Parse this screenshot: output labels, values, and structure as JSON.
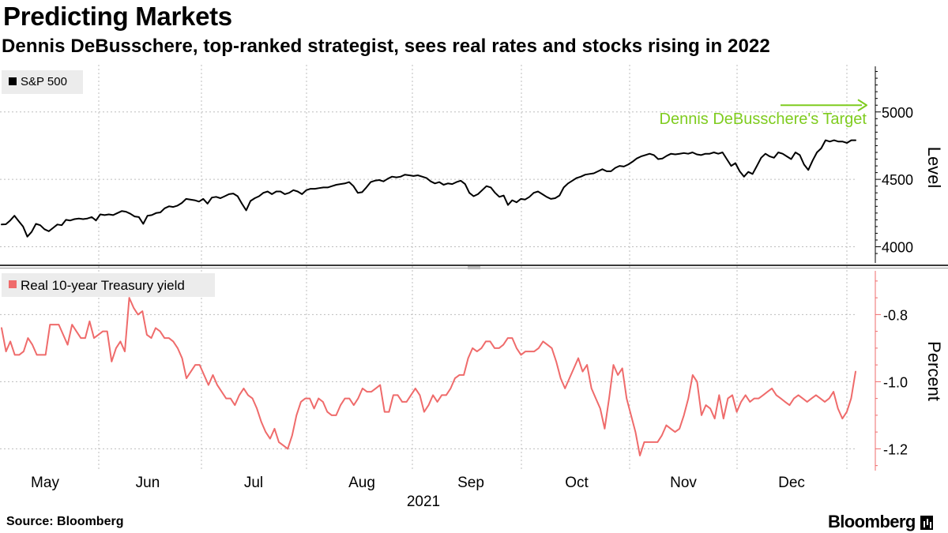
{
  "title": "Predicting Markets",
  "subtitle": "Dennis DeBusschere, top-ranked strategist, sees real rates and stocks rising in 2022",
  "source": "Source: Bloomberg",
  "brand": "Bloomberg",
  "colors": {
    "sp500": "#000000",
    "yield": "#ef6b6b",
    "target": "#7fcc1f",
    "grid": "#bdbdbd"
  },
  "chart_data": [
    {
      "type": "line",
      "legend": "S&P 500",
      "ylabel": "Level",
      "ylim": [
        3880,
        5350
      ],
      "yticks": [
        4000,
        4500,
        5000
      ],
      "annotation": {
        "text": "Dennis DeBusschere's Target",
        "value": 5050
      },
      "values": [
        4165,
        4167,
        4195,
        4230,
        4190,
        4150,
        4075,
        4110,
        4170,
        4160,
        4130,
        4115,
        4140,
        4165,
        4160,
        4200,
        4195,
        4205,
        4210,
        4205,
        4210,
        4220,
        4195,
        4240,
        4235,
        4240,
        4235,
        4250,
        4265,
        4260,
        4245,
        4225,
        4220,
        4170,
        4230,
        4235,
        4250,
        4255,
        4285,
        4300,
        4295,
        4305,
        4325,
        4355,
        4350,
        4345,
        4335,
        4355,
        4320,
        4365,
        4370,
        4360,
        4375,
        4390,
        4395,
        4375,
        4320,
        4270,
        4340,
        4360,
        4375,
        4400,
        4410,
        4390,
        4410,
        4410,
        4390,
        4400,
        4420,
        4410,
        4390,
        4420,
        4430,
        4430,
        4435,
        4440,
        4440,
        4450,
        4460,
        4465,
        4470,
        4480,
        4450,
        4400,
        4405,
        4440,
        4480,
        4490,
        4495,
        4485,
        4505,
        4520,
        4515,
        4520,
        4535,
        4530,
        4525,
        4530,
        4520,
        4510,
        4485,
        4470,
        4480,
        4460,
        4470,
        4465,
        4480,
        4490,
        4465,
        4400,
        4375,
        4390,
        4420,
        4450,
        4440,
        4400,
        4370,
        4380,
        4310,
        4345,
        4330,
        4355,
        4350,
        4370,
        4400,
        4410,
        4390,
        4370,
        4355,
        4360,
        4380,
        4440,
        4470,
        4490,
        4510,
        4520,
        4535,
        4540,
        4545,
        4560,
        4575,
        4560,
        4560,
        4585,
        4600,
        4595,
        4610,
        4630,
        4655,
        4670,
        4680,
        4690,
        4680,
        4650,
        4655,
        4675,
        4690,
        4685,
        4690,
        4695,
        4690,
        4700,
        4685,
        4680,
        4690,
        4690,
        4700,
        4690,
        4700,
        4650,
        4600,
        4620,
        4560,
        4520,
        4555,
        4540,
        4600,
        4660,
        4690,
        4670,
        4660,
        4700,
        4690,
        4670,
        4650,
        4700,
        4680,
        4610,
        4570,
        4640,
        4700,
        4730,
        4790,
        4780,
        4790,
        4780,
        4780,
        4770,
        4790,
        4790
      ]
    },
    {
      "type": "line",
      "legend": "Real 10-year Treasury yield",
      "ylabel": "Percent",
      "ylim": [
        -1.265,
        -0.665
      ],
      "yticks": [
        -0.8,
        -1.0,
        -1.2
      ],
      "values": [
        -0.84,
        -0.91,
        -0.88,
        -0.92,
        -0.92,
        -0.91,
        -0.87,
        -0.89,
        -0.92,
        -0.92,
        -0.92,
        -0.83,
        -0.83,
        -0.83,
        -0.86,
        -0.89,
        -0.83,
        -0.85,
        -0.87,
        -0.87,
        -0.82,
        -0.87,
        -0.86,
        -0.85,
        -0.85,
        -0.94,
        -0.9,
        -0.88,
        -0.91,
        -0.75,
        -0.78,
        -0.8,
        -0.79,
        -0.86,
        -0.87,
        -0.84,
        -0.85,
        -0.87,
        -0.87,
        -0.88,
        -0.9,
        -0.93,
        -0.99,
        -0.97,
        -0.95,
        -0.95,
        -0.98,
        -1.01,
        -0.98,
        -1.01,
        -1.03,
        -1.05,
        -1.05,
        -1.07,
        -1.04,
        -1.02,
        -1.04,
        -1.05,
        -1.08,
        -1.12,
        -1.15,
        -1.17,
        -1.14,
        -1.18,
        -1.19,
        -1.2,
        -1.16,
        -1.1,
        -1.06,
        -1.05,
        -1.05,
        -1.08,
        -1.05,
        -1.06,
        -1.09,
        -1.1,
        -1.1,
        -1.07,
        -1.05,
        -1.05,
        -1.07,
        -1.05,
        -1.02,
        -1.03,
        -1.03,
        -1.02,
        -1.01,
        -1.09,
        -1.09,
        -1.04,
        -1.04,
        -1.06,
        -1.06,
        -1.04,
        -1.02,
        -1.04,
        -1.09,
        -1.07,
        -1.04,
        -1.06,
        -1.04,
        -1.04,
        -1.02,
        -0.99,
        -0.98,
        -0.98,
        -0.93,
        -0.9,
        -0.91,
        -0.9,
        -0.88,
        -0.88,
        -0.9,
        -0.9,
        -0.89,
        -0.87,
        -0.87,
        -0.9,
        -0.92,
        -0.91,
        -0.91,
        -0.91,
        -0.9,
        -0.88,
        -0.89,
        -0.9,
        -0.94,
        -0.99,
        -1.02,
        -0.99,
        -0.96,
        -0.93,
        -0.97,
        -0.95,
        -1.02,
        -1.05,
        -1.08,
        -1.14,
        -1.05,
        -0.95,
        -0.98,
        -0.96,
        -1.05,
        -1.1,
        -1.15,
        -1.22,
        -1.18,
        -1.18,
        -1.18,
        -1.18,
        -1.16,
        -1.13,
        -1.14,
        -1.15,
        -1.14,
        -1.1,
        -1.05,
        -0.98,
        -1.0,
        -1.1,
        -1.07,
        -1.08,
        -1.11,
        -1.04,
        -1.11,
        -1.05,
        -1.04,
        -1.09,
        -1.06,
        -1.04,
        -1.06,
        -1.05,
        -1.05,
        -1.04,
        -1.03,
        -1.02,
        -1.04,
        -1.05,
        -1.06,
        -1.07,
        -1.05,
        -1.04,
        -1.05,
        -1.06,
        -1.05,
        -1.04,
        -1.05,
        -1.06,
        -1.05,
        -1.03,
        -1.08,
        -1.11,
        -1.09,
        -1.05,
        -0.97
      ]
    }
  ],
  "x_axis": {
    "months": [
      "May",
      "Jun",
      "Jul",
      "Aug",
      "Sep",
      "Oct",
      "Nov",
      "Dec"
    ],
    "year": "2021"
  }
}
